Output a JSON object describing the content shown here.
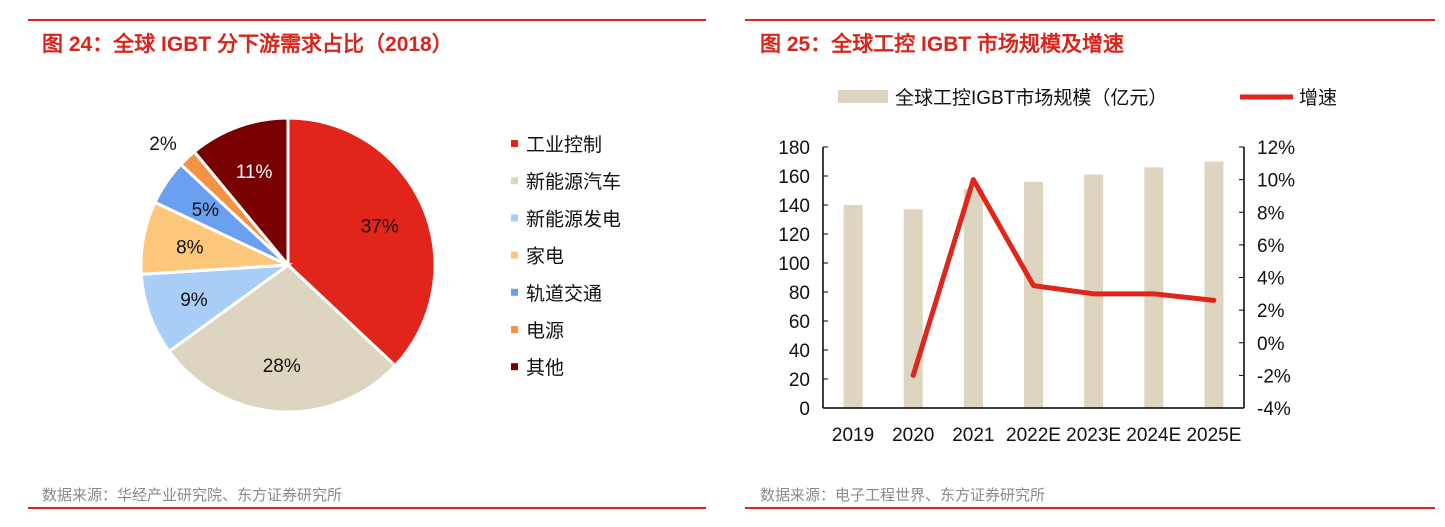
{
  "left": {
    "title": "图 24：全球 IGBT 分下游需求占比（2018）",
    "source": "数据来源：华经产业研究院、东方证券研究所"
  },
  "right": {
    "title": "图 25：全球工控 IGBT 市场规模及增速",
    "source": "数据来源：电子工程世界、东方证券研究所"
  },
  "chart_data": [
    {
      "type": "pie",
      "categories": [
        "工业控制",
        "新能源汽车",
        "新能源发电",
        "家电",
        "轨道交通",
        "电源",
        "其他"
      ],
      "values": [
        37,
        28,
        9,
        8,
        5,
        2,
        11
      ],
      "labels": [
        "37%",
        "28%",
        "9%",
        "8%",
        "5%",
        "2%",
        "11%"
      ],
      "colors": [
        "#e1251b",
        "#ddd5bf",
        "#a8cdf6",
        "#fcc77a",
        "#6b9ff0",
        "#f39345",
        "#780000"
      ],
      "legend": "right"
    },
    {
      "type": "bar+line",
      "categories": [
        "2019",
        "2020",
        "2021",
        "2022E",
        "2023E",
        "2024E",
        "2025E"
      ],
      "series": [
        {
          "name": "全球工控IGBT市场规模（亿元）",
          "type": "bar",
          "axis": "left",
          "values": [
            140,
            137,
            151,
            156,
            161,
            166,
            170
          ],
          "color": "#ddd5bf"
        },
        {
          "name": "增速",
          "type": "line",
          "axis": "right",
          "values": [
            null,
            -2.0,
            10.0,
            3.5,
            3.0,
            3.0,
            2.6
          ],
          "color": "#e1251b"
        }
      ],
      "ylim": [
        0,
        180
      ],
      "yticks": [
        "0",
        "20",
        "40",
        "60",
        "80",
        "100",
        "120",
        "140",
        "160",
        "180"
      ],
      "y2lim": [
        -4,
        12
      ],
      "y2ticks": [
        "-4%",
        "-2%",
        "0%",
        "2%",
        "4%",
        "6%",
        "8%",
        "10%",
        "12%"
      ],
      "legend": "top",
      "grid": false
    }
  ]
}
